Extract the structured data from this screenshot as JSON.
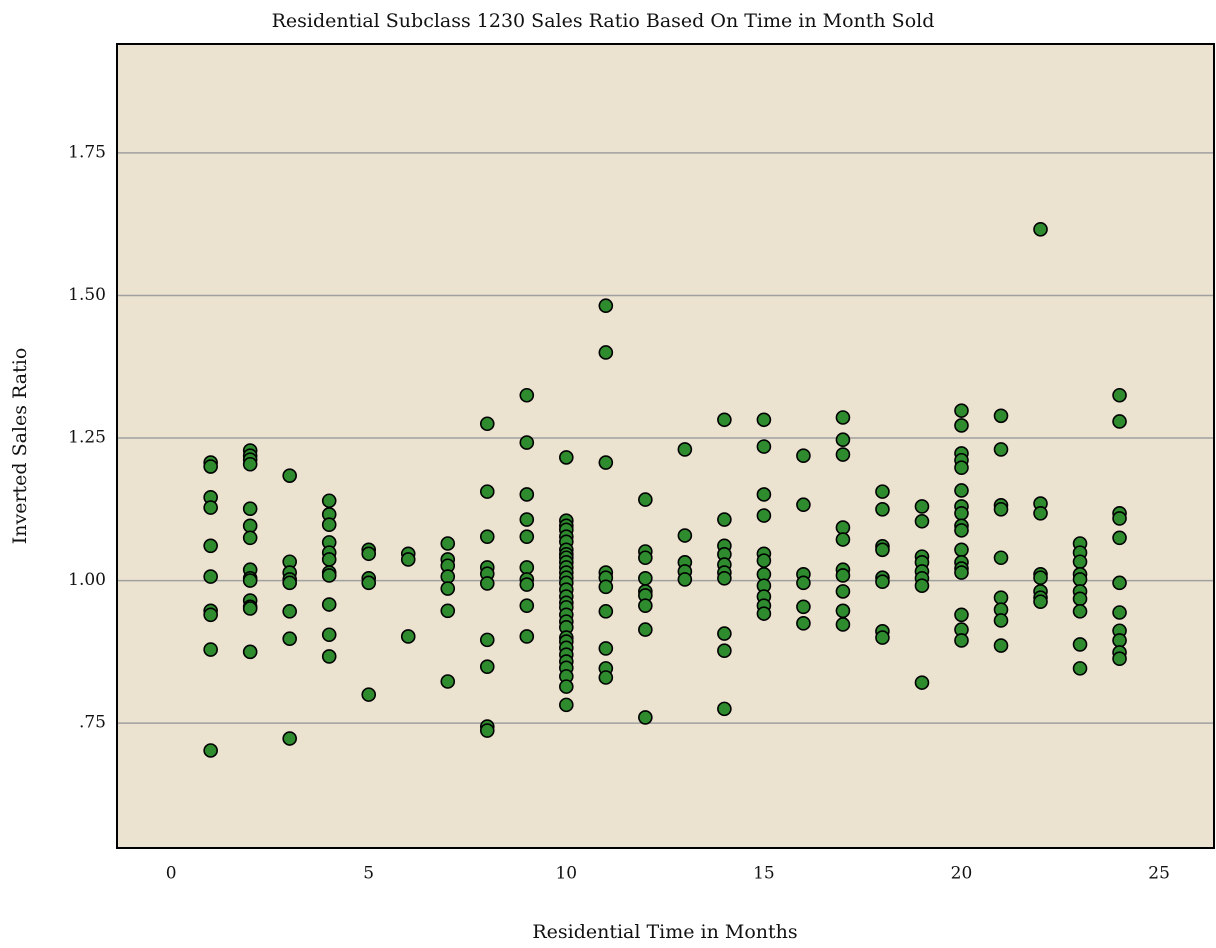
{
  "chart_data": {
    "type": "scatter",
    "title": "Residential Subclass 1230 Sales Ratio Based On Time in Month Sold",
    "x_label": "Residential Time in Months",
    "y_label": "Inverted Sales Ratio",
    "color": "#2e8b2e",
    "xlim": [
      -1.37,
      26.39
    ],
    "ylim": [
      0.531,
      1.941
    ],
    "xticks": [
      0,
      5,
      10,
      15,
      20,
      25
    ],
    "yticks": [
      {
        "value": 0.75,
        "label": ".75"
      },
      {
        "value": 1.0,
        "label": "1.00"
      },
      1.25,
      {
        "value": 1.5,
        "label": "1.50"
      },
      1.75
    ],
    "grid": true,
    "x": [
      1,
      1,
      1,
      1,
      1,
      1,
      1,
      1,
      1,
      1,
      2,
      2,
      2,
      2,
      2,
      2,
      2,
      2,
      2,
      2,
      2,
      2,
      2,
      2,
      3,
      3,
      3,
      3,
      3,
      3,
      3,
      3,
      4,
      4,
      4,
      4,
      4,
      4,
      4,
      4,
      4,
      4,
      4,
      5,
      5,
      5,
      5,
      5,
      6,
      6,
      6,
      7,
      7,
      7,
      7,
      7,
      7,
      7,
      8,
      8,
      8,
      8,
      8,
      8,
      8,
      8,
      8,
      8,
      9,
      9,
      9,
      9,
      9,
      9,
      9,
      9,
      9,
      9,
      10,
      10,
      10,
      10,
      10,
      10,
      10,
      10,
      10,
      10,
      10,
      10,
      10,
      10,
      10,
      10,
      10,
      10,
      10,
      10,
      10,
      10,
      10,
      10,
      10,
      10,
      10,
      10,
      10,
      10,
      11,
      11,
      11,
      11,
      11,
      11,
      11,
      11,
      11,
      11,
      12,
      12,
      12,
      12,
      12,
      12,
      12,
      12,
      12,
      13,
      13,
      13,
      13,
      13,
      14,
      14,
      14,
      14,
      14,
      14,
      14,
      14,
      14,
      14,
      15,
      15,
      15,
      15,
      15,
      15,
      15,
      15,
      15,
      15,
      15,
      16,
      16,
      16,
      16,
      16,
      16,
      17,
      17,
      17,
      17,
      17,
      17,
      17,
      17,
      17,
      17,
      18,
      18,
      18,
      18,
      18,
      18,
      18,
      18,
      19,
      19,
      19,
      19,
      19,
      19,
      19,
      19,
      20,
      20,
      20,
      20,
      20,
      20,
      20,
      20,
      20,
      20,
      20,
      20,
      20,
      20,
      20,
      20,
      20,
      21,
      21,
      21,
      21,
      21,
      21,
      21,
      21,
      21,
      22,
      22,
      22,
      22,
      22,
      22,
      22,
      22,
      23,
      23,
      23,
      23,
      23,
      23,
      23,
      23,
      23,
      23,
      24,
      24,
      24,
      24,
      24,
      24,
      24,
      24,
      24,
      24,
      24
    ],
    "values": [
      1.207,
      1.2,
      1.146,
      1.128,
      1.061,
      1.007,
      0.947,
      0.94,
      0.879,
      0.702,
      1.228,
      1.219,
      1.212,
      1.204,
      1.126,
      1.096,
      1.075,
      1.019,
      1.004,
      1.0,
      0.965,
      0.954,
      0.951,
      0.875,
      1.184,
      1.033,
      1.014,
      1.002,
      0.996,
      0.946,
      0.898,
      0.723,
      1.14,
      1.116,
      1.098,
      1.067,
      1.049,
      1.037,
      1.014,
      1.009,
      0.958,
      0.905,
      0.867,
      1.054,
      1.047,
      1.004,
      0.996,
      0.8,
      1.047,
      1.037,
      0.902,
      1.065,
      1.037,
      1.026,
      1.007,
      0.986,
      0.947,
      0.823,
      1.275,
      1.156,
      1.077,
      1.023,
      1.012,
      0.995,
      0.896,
      0.849,
      0.744,
      0.737,
      1.325,
      1.242,
      1.151,
      1.107,
      1.077,
      1.023,
      1.002,
      0.993,
      0.956,
      0.902,
      1.216,
      1.105,
      1.096,
      1.089,
      1.077,
      1.068,
      1.054,
      1.046,
      1.04,
      1.032,
      1.023,
      1.014,
      1.005,
      0.996,
      0.984,
      0.972,
      0.961,
      0.953,
      0.94,
      0.928,
      0.918,
      0.9,
      0.893,
      0.882,
      0.87,
      0.858,
      0.847,
      0.832,
      0.814,
      0.782,
      1.482,
      1.4,
      1.207,
      1.014,
      1.005,
      0.989,
      0.946,
      0.881,
      0.846,
      0.83,
      1.142,
      1.051,
      1.04,
      1.004,
      0.981,
      0.974,
      0.956,
      0.914,
      0.76,
      1.23,
      1.079,
      1.032,
      1.016,
      1.002,
      1.282,
      1.107,
      1.061,
      1.046,
      1.028,
      1.014,
      1.004,
      0.907,
      0.877,
      0.775,
      1.282,
      1.235,
      1.151,
      1.114,
      1.047,
      1.035,
      1.011,
      0.991,
      0.972,
      0.956,
      0.942,
      1.219,
      1.133,
      1.011,
      0.996,
      0.954,
      0.925,
      1.286,
      1.247,
      1.221,
      1.093,
      1.072,
      1.019,
      1.009,
      0.981,
      0.947,
      0.923,
      1.156,
      1.125,
      1.06,
      1.054,
      1.005,
      0.998,
      0.911,
      0.9,
      1.13,
      1.104,
      1.042,
      1.032,
      1.016,
      1.004,
      0.991,
      0.821,
      1.298,
      1.272,
      1.223,
      1.211,
      1.198,
      1.158,
      1.13,
      1.118,
      1.096,
      1.088,
      1.054,
      1.032,
      1.021,
      1.014,
      0.94,
      0.914,
      0.895,
      1.289,
      1.23,
      1.132,
      1.125,
      1.04,
      0.97,
      0.949,
      0.93,
      0.886,
      1.616,
      1.135,
      1.118,
      1.011,
      1.005,
      0.981,
      0.97,
      0.963,
      1.065,
      1.049,
      1.033,
      1.011,
      1.002,
      0.981,
      0.968,
      0.946,
      0.888,
      0.846,
      1.325,
      1.279,
      1.118,
      1.109,
      1.075,
      0.996,
      0.944,
      0.912,
      0.895,
      0.874,
      0.863
    ]
  }
}
